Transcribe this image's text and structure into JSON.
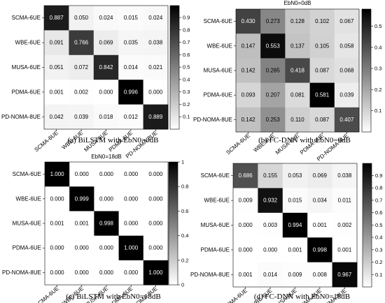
{
  "chart_data": [
    {
      "type": "heatmap",
      "title": "",
      "caption": "(a) BiLSTM with EbN0=0dB",
      "rows": [
        "SCMA-6UE",
        "WBE-6UE",
        "MUSA-6UE",
        "PDMA-6UE",
        "PD-NOMA-8UE"
      ],
      "cols": [
        "SCMA-6UE",
        "WBE-6UE",
        "MUSA-6UE",
        "PDMA-6UE",
        "PD-NOMA-8UE"
      ],
      "values": [
        [
          "0.887",
          "0.050",
          "0.024",
          "0.015",
          "0.024"
        ],
        [
          "0.091",
          "0.766",
          "0.069",
          "0.035",
          "0.038"
        ],
        [
          "0.051",
          "0.072",
          "0.842",
          "0.014",
          "0.021"
        ],
        [
          "0.001",
          "0.002",
          "0.000",
          "0.996",
          "0.000"
        ],
        [
          "0.042",
          "0.039",
          "0.018",
          "0.012",
          "0.889"
        ]
      ],
      "colorbar": {
        "min": 0,
        "max": 0.996,
        "ticks": [
          "0.1",
          "0.2",
          "0.3",
          "0.4",
          "0.5",
          "0.6",
          "0.7",
          "0.8",
          "0.9"
        ]
      }
    },
    {
      "type": "heatmap",
      "title": "EbN0=0dB",
      "caption": "(b) FC-DNN with EbN0=0dB",
      "rows": [
        "SCMA-6UE",
        "WBE-6UE",
        "MUSA-6UE",
        "PDMA-6UE",
        "PD-NOMA-8UE"
      ],
      "cols": [
        "SCMA-6UE",
        "WBE-6UE",
        "MUSA-6UE",
        "PDMA-6UE",
        "PD-NOMA-8UE"
      ],
      "values": [
        [
          "0.430",
          "0.273",
          "0.128",
          "0.102",
          "0.067"
        ],
        [
          "0.147",
          "0.553",
          "0.137",
          "0.105",
          "0.058"
        ],
        [
          "0.142",
          "0.285",
          "0.418",
          "0.087",
          "0.068"
        ],
        [
          "0.093",
          "0.207",
          "0.081",
          "0.581",
          "0.039"
        ],
        [
          "0.142",
          "0.253",
          "0.110",
          "0.087",
          "0.407"
        ]
      ],
      "colorbar": {
        "min": 0,
        "max": 0.581,
        "ticks": [
          "0.1",
          "0.2",
          "0.3",
          "0.4",
          "0.5"
        ]
      }
    },
    {
      "type": "heatmap",
      "title": "EbN0=18dB",
      "caption": "(c) BiLSTM with EbN0=18dB",
      "rows": [
        "SCMA-6UE",
        "WBE-6UE",
        "MUSA-6UE",
        "PDMA-6UE",
        "PD-NOMA-8UE"
      ],
      "cols": [
        "SCMA-6UE",
        "WBE-6UE",
        "MUSA-6UE",
        "PDMA-6UE",
        "PD-NOMA-8UE"
      ],
      "values": [
        [
          "1.000",
          "0.000",
          "0.000",
          "0.000",
          "0.000"
        ],
        [
          "0.000",
          "0.999",
          "0.000",
          "0.000",
          "0.000"
        ],
        [
          "0.001",
          "0.001",
          "0.998",
          "0.000",
          "0.000"
        ],
        [
          "0.000",
          "0.000",
          "0.000",
          "1.000",
          "0.000"
        ],
        [
          "0.000",
          "0.000",
          "0.000",
          "0.000",
          "1.000"
        ]
      ],
      "colorbar": {
        "min": 0,
        "max": 1.0,
        "ticks": [
          "0",
          "0.2",
          "0.4",
          "0.6",
          "0.8",
          "1"
        ]
      }
    },
    {
      "type": "heatmap",
      "title": "",
      "caption": "(d) FC-DNN with EbN0=18dB",
      "rows": [
        "SCMA-6UE",
        "WBE-6UE",
        "MUSA-6UE",
        "PDMA-6UE",
        "PD-NOMA-8UE"
      ],
      "cols": [
        "SCMA-6UE",
        "WBE-6UE",
        "MUSA-6UE",
        "PDMA-6UE",
        "PD-NOMA-8UE"
      ],
      "values": [
        [
          "0.686",
          "0.155",
          "0.053",
          "0.069",
          "0.038"
        ],
        [
          "0.009",
          "0.932",
          "0.015",
          "0.034",
          "0.011"
        ],
        [
          "0.000",
          "0.003",
          "0.994",
          "0.001",
          "0.002"
        ],
        [
          "0.000",
          "0.000",
          "0.001",
          "0.998",
          "0.001"
        ],
        [
          "0.001",
          "0.014",
          "0.009",
          "0.008",
          "0.967"
        ]
      ],
      "colorbar": {
        "min": 0,
        "max": 0.998,
        "ticks": [
          "0.1",
          "0.2",
          "0.3",
          "0.4",
          "0.5",
          "0.6",
          "0.7",
          "0.8",
          "0.9"
        ]
      }
    }
  ]
}
